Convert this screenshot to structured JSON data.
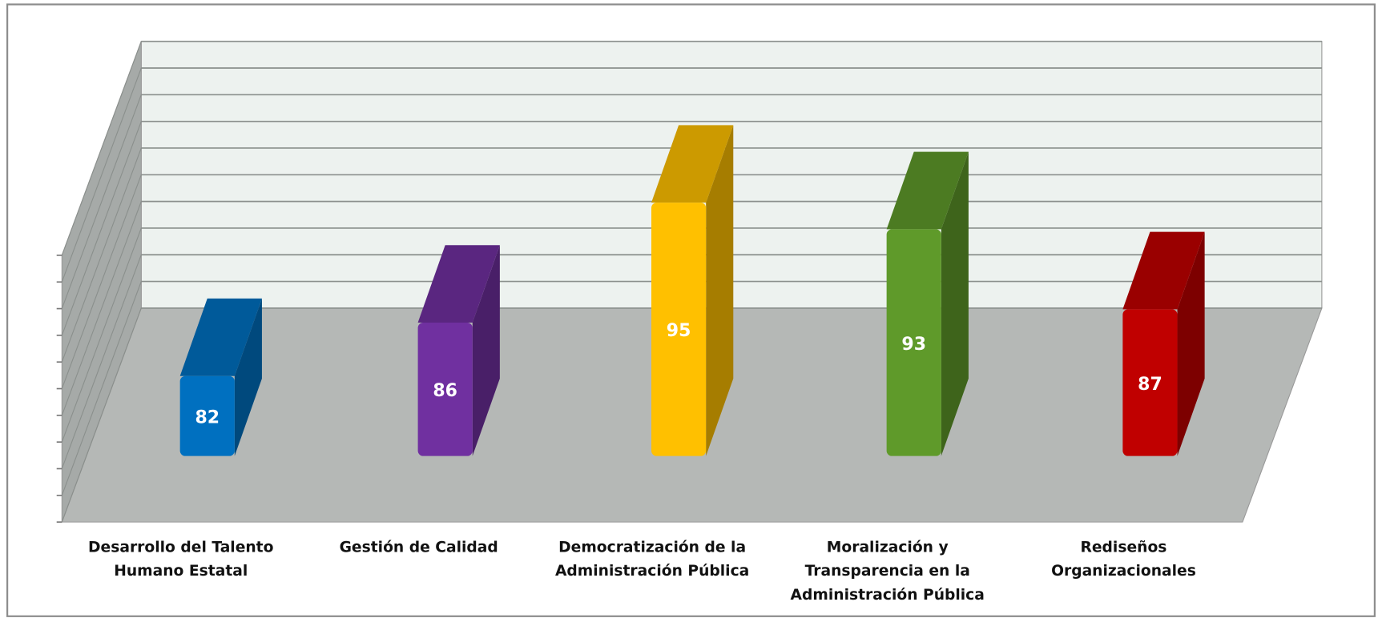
{
  "chart_data": {
    "type": "bar",
    "three_d": true,
    "categories": [
      [
        "Desarrollo del Talento",
        "Humano Estatal"
      ],
      [
        "Gestión de Calidad"
      ],
      [
        "Democratización de la",
        "Administración Pública"
      ],
      [
        "Moralización y",
        "Transparencia en la",
        "Administración Pública"
      ],
      [
        "Rediseños",
        "Organizacionales"
      ]
    ],
    "values": [
      82,
      86,
      95,
      93,
      87
    ],
    "colors": [
      "#0070c0",
      "#7030a0",
      "#ffc000",
      "#5f9a2a",
      "#c00000"
    ],
    "ylim": [
      76,
      96
    ],
    "yticks": [
      76,
      78,
      80,
      82,
      84,
      86,
      88,
      90,
      92,
      94,
      96
    ],
    "grid": true
  }
}
